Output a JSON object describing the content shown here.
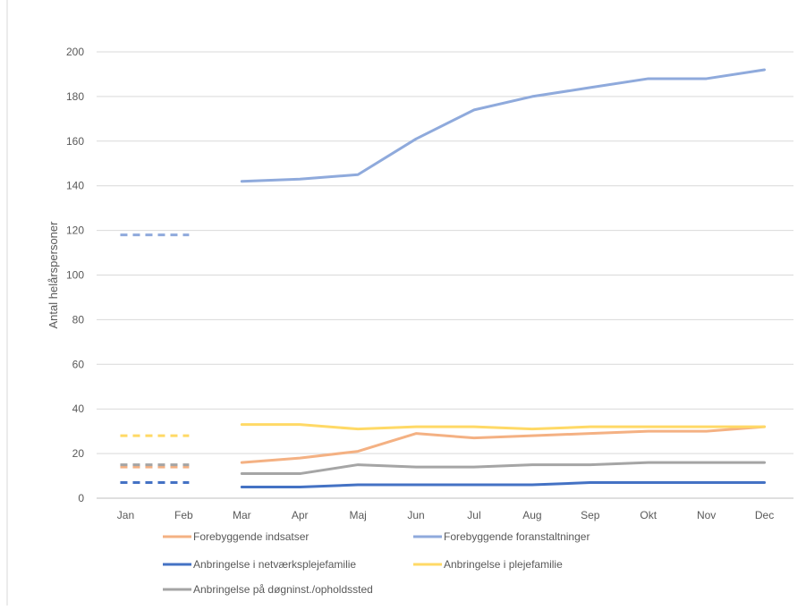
{
  "chart_data": {
    "type": "line",
    "ylabel": "Antal helårspersoner",
    "xlabel": "",
    "ylim": [
      0,
      200
    ],
    "ytick_step": 20,
    "grid": "horizontal",
    "legend_position": "bottom",
    "categories": [
      "Jan",
      "Feb",
      "Mar",
      "Apr",
      "Maj",
      "Jun",
      "Jul",
      "Aug",
      "Sep",
      "Okt",
      "Nov",
      "Dec"
    ],
    "series": [
      {
        "name": "Forebyggende indsatser",
        "color": "#F4B183",
        "dashed_reference": 14,
        "values": [
          null,
          null,
          16,
          18,
          21,
          29,
          27,
          28,
          29,
          30,
          30,
          32
        ]
      },
      {
        "name": "Forebyggende foranstaltninger",
        "color": "#8FAADC",
        "dashed_reference": 118,
        "values": [
          null,
          null,
          142,
          143,
          145,
          161,
          174,
          180,
          184,
          188,
          188,
          192
        ]
      },
      {
        "name": "Anbringelse i netværksplejefamilie",
        "color": "#4472C4",
        "dashed_reference": 7,
        "values": [
          null,
          null,
          5,
          5,
          6,
          6,
          6,
          6,
          7,
          7,
          7,
          7
        ]
      },
      {
        "name": "Anbringelse i plejefamilie",
        "color": "#FFD966",
        "dashed_reference": 28,
        "values": [
          null,
          null,
          33,
          33,
          31,
          32,
          32,
          31,
          32,
          32,
          32,
          32
        ]
      },
      {
        "name": "Anbringelse på døgninst./opholdssted",
        "color": "#A5A5A5",
        "dashed_reference": 15,
        "values": [
          null,
          null,
          11,
          11,
          15,
          14,
          14,
          15,
          15,
          16,
          16,
          16
        ]
      }
    ]
  }
}
